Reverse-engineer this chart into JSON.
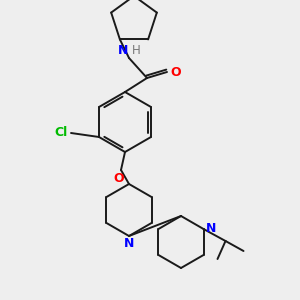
{
  "bg_color": "#eeeeee",
  "bond_color": "#1a1a1a",
  "atom_colors": {
    "N": "#0000ff",
    "O": "#ff0000",
    "Cl": "#00bb00",
    "H": "#777777",
    "C": "#1a1a1a"
  },
  "figsize": [
    3.0,
    3.0
  ],
  "dpi": 100,
  "lw": 1.4
}
